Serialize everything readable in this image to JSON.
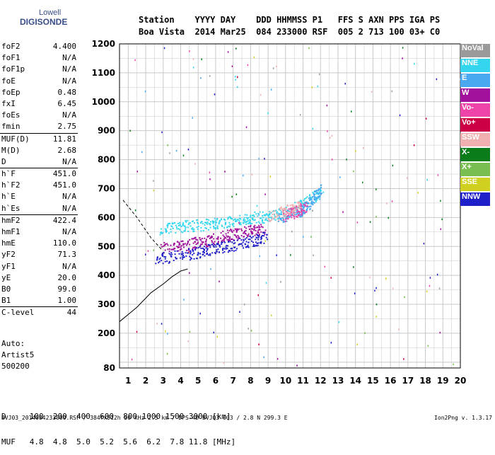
{
  "logo": {
    "line1": "Lowell",
    "line2": "DIGISONDE"
  },
  "header": {
    "line1": "Station    YYYY DAY    DDD HHMMSS P1   FFS S AXN PPS IGA PS",
    "line2": "Boa Vista  2014 Mar25  084 233000 RSF  005 2 713 100 03+ C0"
  },
  "params": [
    {
      "name": "foF2",
      "value": "4.400"
    },
    {
      "name": "foF1",
      "value": "N/A"
    },
    {
      "name": "foF1p",
      "value": "N/A"
    },
    {
      "name": "foE",
      "value": "N/A"
    },
    {
      "name": "foEp",
      "value": "0.48"
    },
    {
      "name": "fxI",
      "value": "6.45"
    },
    {
      "name": "foEs",
      "value": "N/A"
    },
    {
      "name": "fmin",
      "value": "2.75"
    },
    {
      "sep": true
    },
    {
      "name": "MUF(D)",
      "value": "11.81"
    },
    {
      "name": "M(D)",
      "value": "2.68"
    },
    {
      "name": "D",
      "value": "N/A"
    },
    {
      "sep": true
    },
    {
      "name": "h`F",
      "value": "451.0"
    },
    {
      "name": "h`F2",
      "value": "451.0"
    },
    {
      "name": "h`E",
      "value": "N/A"
    },
    {
      "name": "h`Es",
      "value": "N/A"
    },
    {
      "sep": true
    },
    {
      "name": "hmF2",
      "value": "422.4"
    },
    {
      "name": "hmF1",
      "value": "N/A"
    },
    {
      "name": "hmE",
      "value": "110.0"
    },
    {
      "name": "yF2",
      "value": "71.3"
    },
    {
      "name": "yF1",
      "value": "N/A"
    },
    {
      "name": "yE",
      "value": "20.0"
    },
    {
      "name": "B0",
      "value": "99.0"
    },
    {
      "name": "B1",
      "value": "1.00"
    },
    {
      "sep": true
    },
    {
      "name": "C-level",
      "value": "44"
    }
  ],
  "auto": {
    "line1": "Auto:",
    "line2": "Artist5",
    "line3": "500200"
  },
  "legend": [
    {
      "label": "NoVal",
      "color": "#9a9a9a"
    },
    {
      "label": "NNE",
      "color": "#33d6ee"
    },
    {
      "label": "E",
      "color": "#4aa8f0"
    },
    {
      "label": "W",
      "color": "#a0109c"
    },
    {
      "label": "Vo-",
      "color": "#ee44aa"
    },
    {
      "label": "Vo+",
      "color": "#cc0044"
    },
    {
      "label": "SSW",
      "color": "#f0b0b0"
    },
    {
      "label": "X-",
      "color": "#0a7d1a"
    },
    {
      "label": "X+",
      "color": "#78be50"
    },
    {
      "label": "SSE",
      "color": "#d0d020"
    },
    {
      "label": "NNW",
      "color": "#2020c8"
    }
  ],
  "bottom": {
    "line1": "D     100  200  400  600  800 1000 1500 3000 [km]",
    "line2": "MUF   4.8  4.8  5.0  5.2  5.6  6.2  7.8 11.8 [MHz]"
  },
  "footer": "BVJ03_2014084233000.RSF / 384fx512h 50 kHz 2.5 km / DPS-4D BVJ03 003 / 2.8 N 299.3 E",
  "version": "Ion2Png v. 1.3.17",
  "chart_data": {
    "type": "scatter",
    "xlim": [
      0.5,
      20.0
    ],
    "ylim": [
      80,
      1200
    ],
    "x_ticks": [
      1,
      2,
      3,
      4,
      5,
      6,
      7,
      8,
      9,
      10,
      11,
      12,
      13,
      14,
      15,
      16,
      17,
      18,
      19,
      20
    ],
    "y_ticks": [
      80,
      200,
      300,
      400,
      500,
      600,
      700,
      800,
      900,
      1000,
      1100,
      1200
    ],
    "grid": true,
    "legend_position": "right",
    "series": [
      {
        "name": "NNE",
        "color": "#33d6ee",
        "ordinary_trace": [
          [
            2.8,
            560
          ],
          [
            4,
            570
          ],
          [
            5,
            575
          ],
          [
            6,
            580
          ],
          [
            7,
            590
          ],
          [
            8,
            600
          ],
          [
            9,
            605
          ],
          [
            10,
            620
          ],
          [
            11,
            650
          ],
          [
            12,
            690
          ]
        ]
      },
      {
        "name": "E",
        "color": "#4aa8f0",
        "ordinary_trace": [
          [
            9.5,
            600
          ],
          [
            10.5,
            615
          ],
          [
            11,
            630
          ],
          [
            11.5,
            660
          ],
          [
            12,
            700
          ]
        ]
      },
      {
        "name": "W",
        "color": "#a0109c",
        "ordinary_trace": [
          [
            2.8,
            495
          ],
          [
            4,
            505
          ],
          [
            5,
            515
          ],
          [
            6,
            530
          ],
          [
            7,
            545
          ],
          [
            8,
            555
          ],
          [
            8.8,
            560
          ]
        ]
      },
      {
        "name": "Vo-",
        "color": "#ee44aa",
        "ordinary_trace": [
          [
            9.8,
            605
          ],
          [
            10.5,
            620
          ],
          [
            11.2,
            640
          ]
        ]
      },
      {
        "name": "NNW",
        "color": "#2020c8",
        "ordinary_trace": [
          [
            2.5,
            460
          ],
          [
            4,
            470
          ],
          [
            5,
            480
          ],
          [
            6,
            495
          ],
          [
            7,
            505
          ],
          [
            8,
            520
          ],
          [
            9,
            535
          ]
        ]
      },
      {
        "name": "SSW",
        "color": "#f0b0b0",
        "ordinary_trace": [
          [
            9,
            600
          ],
          [
            10,
            625
          ],
          [
            10.8,
            640
          ]
        ]
      }
    ],
    "profile_line": [
      [
        0.5,
        240
      ],
      [
        1.5,
        290
      ],
      [
        2.3,
        340
      ],
      [
        3,
        370
      ],
      [
        3.5,
        395
      ],
      [
        4,
        415
      ],
      [
        4.4,
        422
      ]
    ],
    "dashed_line": [
      [
        0.7,
        660
      ],
      [
        1.5,
        600
      ],
      [
        2.3,
        530
      ],
      [
        2.9,
        490
      ]
    ]
  }
}
